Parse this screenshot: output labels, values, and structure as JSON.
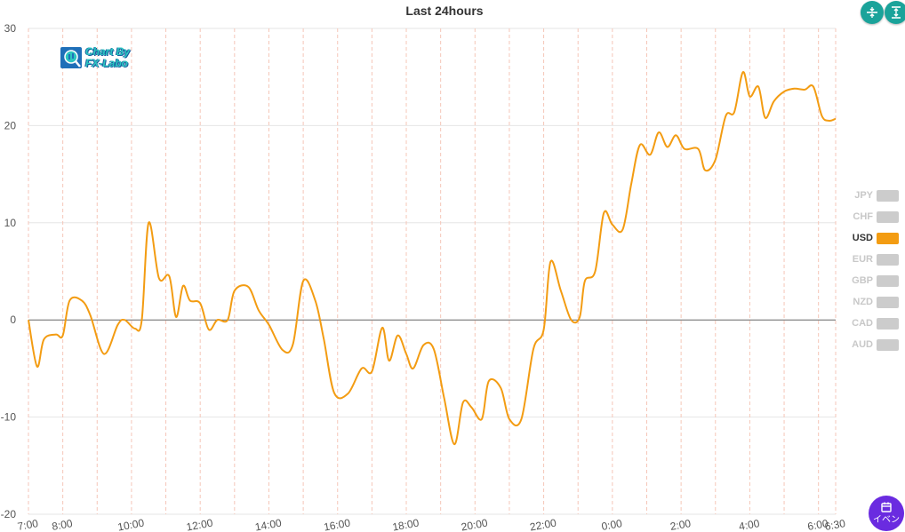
{
  "chart_data": {
    "type": "line",
    "title": "Last 24hours",
    "ylim": [
      -20,
      30
    ],
    "yticks": [
      30,
      20,
      10,
      0,
      -10,
      -20
    ],
    "xlim": [
      0,
      23.5
    ],
    "xticks": [
      {
        "label": "7:00",
        "x": 0
      },
      {
        "label": "8:00",
        "x": 1
      },
      {
        "label": "10:00",
        "x": 3
      },
      {
        "label": "12:00",
        "x": 5
      },
      {
        "label": "14:00",
        "x": 7
      },
      {
        "label": "16:00",
        "x": 9
      },
      {
        "label": "18:00",
        "x": 11
      },
      {
        "label": "20:00",
        "x": 13
      },
      {
        "label": "22:00",
        "x": 15
      },
      {
        "label": "0:00",
        "x": 17
      },
      {
        "label": "2:00",
        "x": 19
      },
      {
        "label": "4:00",
        "x": 21
      },
      {
        "label": "6:00",
        "x": 23
      },
      {
        "label": "6:30",
        "x": 23.5
      }
    ],
    "vgrid_x": [
      0,
      1,
      2,
      3,
      4,
      5,
      6,
      7,
      8,
      9,
      10,
      11,
      12,
      13,
      14,
      15,
      16,
      17,
      18,
      19,
      20,
      21,
      22,
      23,
      23.5
    ],
    "hgrid": true,
    "legend_position": "right",
    "series": [
      {
        "name": "USD",
        "color": "#f39c12",
        "points": [
          [
            0,
            0
          ],
          [
            0.25,
            -4.8
          ],
          [
            0.45,
            -2
          ],
          [
            0.8,
            -1.5
          ],
          [
            1.0,
            -1.6
          ],
          [
            1.2,
            2
          ],
          [
            1.55,
            2
          ],
          [
            1.8,
            0.5
          ],
          [
            2.2,
            -3.5
          ],
          [
            2.6,
            -0.5
          ],
          [
            2.8,
            0
          ],
          [
            3.1,
            -0.9
          ],
          [
            3.3,
            0
          ],
          [
            3.5,
            10
          ],
          [
            3.8,
            4.3
          ],
          [
            4.1,
            4.5
          ],
          [
            4.3,
            0.3
          ],
          [
            4.5,
            3.5
          ],
          [
            4.7,
            2
          ],
          [
            5.0,
            1.7
          ],
          [
            5.25,
            -1
          ],
          [
            5.5,
            0
          ],
          [
            5.8,
            0
          ],
          [
            6.0,
            3
          ],
          [
            6.4,
            3.4
          ],
          [
            6.7,
            1
          ],
          [
            7.0,
            -0.5
          ],
          [
            7.4,
            -3.1
          ],
          [
            7.7,
            -2.5
          ],
          [
            8.0,
            4
          ],
          [
            8.35,
            2
          ],
          [
            8.6,
            -2
          ],
          [
            8.9,
            -7.5
          ],
          [
            9.3,
            -7.6
          ],
          [
            9.7,
            -5
          ],
          [
            10.0,
            -5.3
          ],
          [
            10.3,
            -0.8
          ],
          [
            10.5,
            -4.2
          ],
          [
            10.75,
            -1.6
          ],
          [
            11.0,
            -3.5
          ],
          [
            11.2,
            -5
          ],
          [
            11.5,
            -2.6
          ],
          [
            11.8,
            -3
          ],
          [
            12.1,
            -8
          ],
          [
            12.4,
            -12.8
          ],
          [
            12.65,
            -8.5
          ],
          [
            12.9,
            -9
          ],
          [
            13.2,
            -10.2
          ],
          [
            13.4,
            -6.3
          ],
          [
            13.75,
            -7
          ],
          [
            14.0,
            -10.2
          ],
          [
            14.35,
            -10.2
          ],
          [
            14.7,
            -3
          ],
          [
            15.0,
            -1
          ],
          [
            15.2,
            6
          ],
          [
            15.5,
            3
          ],
          [
            15.8,
            0
          ],
          [
            16.05,
            0.3
          ],
          [
            16.2,
            4
          ],
          [
            16.5,
            5
          ],
          [
            16.75,
            11
          ],
          [
            17.0,
            9.8
          ],
          [
            17.3,
            9.3
          ],
          [
            17.55,
            14
          ],
          [
            17.8,
            18
          ],
          [
            18.1,
            17
          ],
          [
            18.35,
            19.3
          ],
          [
            18.6,
            17.8
          ],
          [
            18.85,
            19
          ],
          [
            19.1,
            17.6
          ],
          [
            19.5,
            17.6
          ],
          [
            19.7,
            15.4
          ],
          [
            20.0,
            16.5
          ],
          [
            20.3,
            21
          ],
          [
            20.55,
            21.4
          ],
          [
            20.8,
            25.5
          ],
          [
            21.0,
            23
          ],
          [
            21.25,
            24
          ],
          [
            21.45,
            20.8
          ],
          [
            21.7,
            22.5
          ],
          [
            22.0,
            23.5
          ],
          [
            22.3,
            23.8
          ],
          [
            22.6,
            23.7
          ],
          [
            22.85,
            24
          ],
          [
            23.1,
            21
          ],
          [
            23.3,
            20.5
          ],
          [
            23.5,
            20.7
          ]
        ]
      }
    ]
  },
  "legend": {
    "items": [
      {
        "label": "JPY",
        "active": false
      },
      {
        "label": "CHF",
        "active": false
      },
      {
        "label": "USD",
        "active": true
      },
      {
        "label": "EUR",
        "active": false
      },
      {
        "label": "GBP",
        "active": false
      },
      {
        "label": "NZD",
        "active": false
      },
      {
        "label": "CAD",
        "active": false
      },
      {
        "label": "AUD",
        "active": false
      }
    ],
    "active_color": "#f39c12",
    "inactive_color": "#cccccc"
  },
  "logo": {
    "line1": "Chart By",
    "line2": "FX-Labo"
  },
  "toolbar": {
    "compress_icon": "compress-vertical-icon",
    "expand_icon": "expand-vertical-icon"
  },
  "event_button": {
    "label": "イベン",
    "icon": "calendar-icon"
  }
}
